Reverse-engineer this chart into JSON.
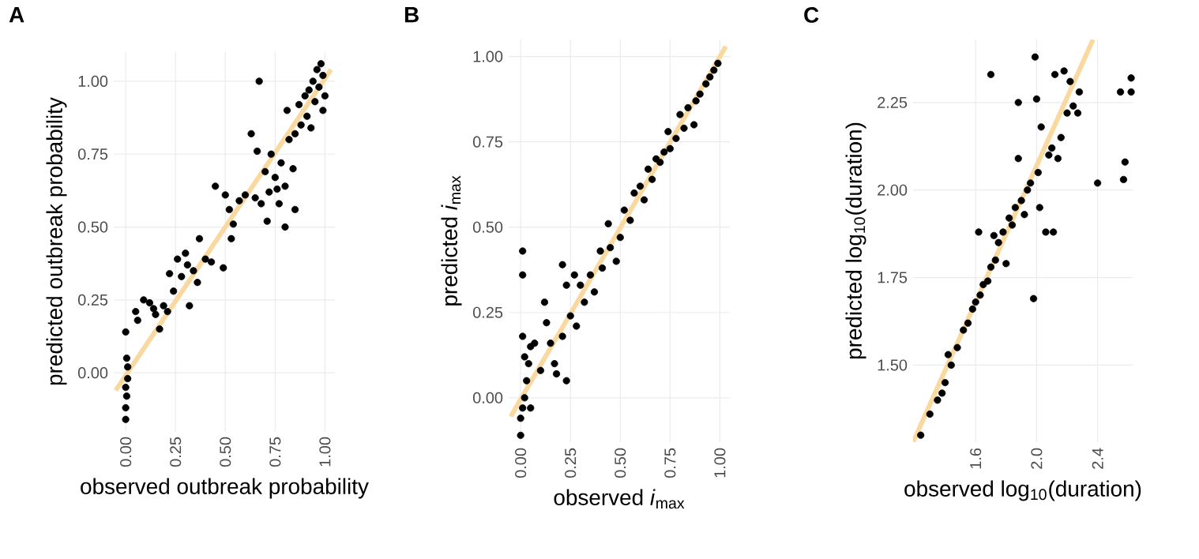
{
  "chart_data": [
    {
      "type": "scatter",
      "title": "A",
      "xlabel": "observed outbreak probability",
      "ylabel": "predicted outbreak probability",
      "grid": true,
      "xlim": [
        -0.06,
        1.05
      ],
      "ylim": [
        -0.2,
        1.1
      ],
      "xticks": [
        {
          "value": 0,
          "label": "0.00"
        },
        {
          "value": 0.25,
          "label": "0.25"
        },
        {
          "value": 0.5,
          "label": "0.50"
        },
        {
          "value": 0.75,
          "label": "0.75"
        },
        {
          "value": 1,
          "label": "1.00"
        }
      ],
      "yticks": [
        {
          "value": 0,
          "label": "0.00"
        },
        {
          "value": 0.25,
          "label": "0.25"
        },
        {
          "value": 0.5,
          "label": "0.50"
        },
        {
          "value": 0.75,
          "label": "0.75"
        },
        {
          "value": 1,
          "label": "1.00"
        }
      ],
      "series": [
        {
          "marker": "circle",
          "color": "#000000",
          "x": [
            0,
            0,
            0.005,
            0,
            0.01,
            0.01,
            0.005,
            0,
            0.05,
            0.06,
            0.09,
            0.12,
            0.14,
            0.15,
            0.17,
            0.19,
            0.21,
            0.22,
            0.24,
            0.26,
            0.28,
            0.3,
            0.31,
            0.32,
            0.34,
            0.36,
            0.37,
            0.4,
            0.43,
            0.45,
            0.49,
            0.5,
            0.52,
            0.53,
            0.54,
            0.57,
            0.6,
            0.63,
            0.65,
            0.66,
            0.67,
            0.68,
            0.7,
            0.71,
            0.72,
            0.73,
            0.75,
            0.76,
            0.77,
            0.78,
            0.8,
            0.8,
            0.81,
            0.82,
            0.84,
            0.85,
            0.85,
            0.87,
            0.88,
            0.9,
            0.91,
            0.92,
            0.93,
            0.94,
            0.95,
            0.96,
            0.97,
            0.98,
            0.99,
            1.0,
            0.99
          ],
          "values": [
            -0.16,
            -0.12,
            -0.08,
            -0.05,
            -0.02,
            0.02,
            0.05,
            0.14,
            0.21,
            0.18,
            0.25,
            0.24,
            0.22,
            0.2,
            0.15,
            0.23,
            0.21,
            0.34,
            0.28,
            0.39,
            0.33,
            0.41,
            0.37,
            0.23,
            0.35,
            0.31,
            0.46,
            0.39,
            0.38,
            0.64,
            0.36,
            0.61,
            0.56,
            0.46,
            0.51,
            0.59,
            0.61,
            0.82,
            0.6,
            0.76,
            1.0,
            0.58,
            0.69,
            0.52,
            0.62,
            0.75,
            0.67,
            0.63,
            0.58,
            0.72,
            0.5,
            0.64,
            0.9,
            0.8,
            0.7,
            0.56,
            0.82,
            0.92,
            0.85,
            0.95,
            0.88,
            0.97,
            0.84,
            1.0,
            0.93,
            1.04,
            0.98,
            1.06,
            1.02,
            0.95,
            0.9
          ]
        },
        {
          "type": "line",
          "marker": "none",
          "color": "#f9d9a0",
          "x": [
            -0.05,
            1.03
          ],
          "values": [
            -0.06,
            1.04
          ]
        }
      ]
    },
    {
      "type": "scatter",
      "title": "B",
      "xlabel": "observed *i*$_{max}$",
      "ylabel": "predicted *i*$_{max}$",
      "grid": true,
      "xlim": [
        -0.06,
        1.05
      ],
      "ylim": [
        -0.13,
        1.05
      ],
      "xticks": [
        {
          "value": 0,
          "label": "0.00"
        },
        {
          "value": 0.25,
          "label": "0.25"
        },
        {
          "value": 0.5,
          "label": "0.50"
        },
        {
          "value": 0.75,
          "label": "0.75"
        },
        {
          "value": 1,
          "label": "1.00"
        }
      ],
      "yticks": [
        {
          "value": 0,
          "label": "0.00"
        },
        {
          "value": 0.25,
          "label": "0.25"
        },
        {
          "value": 0.5,
          "label": "0.50"
        },
        {
          "value": 0.75,
          "label": "0.75"
        },
        {
          "value": 1,
          "label": "1.00"
        }
      ],
      "series": [
        {
          "marker": "circle",
          "color": "#000000",
          "x": [
            0,
            0,
            0.01,
            0.02,
            0.03,
            0.05,
            0.01,
            0.01,
            0.01,
            0.02,
            0.04,
            0.05,
            0.07,
            0.1,
            0.12,
            0.13,
            0.15,
            0.17,
            0.18,
            0.21,
            0.21,
            0.23,
            0.23,
            0.25,
            0.27,
            0.28,
            0.3,
            0.32,
            0.35,
            0.37,
            0.4,
            0.41,
            0.44,
            0.45,
            0.48,
            0.5,
            0.52,
            0.55,
            0.57,
            0.6,
            0.62,
            0.64,
            0.66,
            0.68,
            0.7,
            0.72,
            0.74,
            0.75,
            0.78,
            0.8,
            0.82,
            0.84,
            0.87,
            0.88,
            0.9,
            0.93,
            0.95,
            0.97,
            0.99
          ],
          "values": [
            -0.11,
            -0.06,
            -0.03,
            0.0,
            0.05,
            -0.03,
            0.43,
            0.36,
            0.18,
            0.12,
            0.1,
            0.15,
            0.16,
            0.08,
            0.28,
            0.22,
            0.16,
            0.1,
            0.07,
            0.39,
            0.18,
            0.05,
            0.33,
            0.24,
            0.36,
            0.21,
            0.33,
            0.28,
            0.36,
            0.31,
            0.43,
            0.38,
            0.51,
            0.44,
            0.4,
            0.47,
            0.55,
            0.52,
            0.6,
            0.62,
            0.58,
            0.67,
            0.64,
            0.7,
            0.69,
            0.72,
            0.78,
            0.73,
            0.76,
            0.83,
            0.79,
            0.85,
            0.8,
            0.87,
            0.89,
            0.92,
            0.94,
            0.96,
            0.98
          ]
        },
        {
          "type": "line",
          "marker": "none",
          "color": "#f9d9a0",
          "x": [
            -0.05,
            1.03
          ],
          "values": [
            -0.055,
            1.03
          ]
        }
      ]
    },
    {
      "type": "scatter",
      "title": "C",
      "xlabel": "observed log$_{10}$(duration)",
      "ylabel": "predicted log$_{10}$(duration)",
      "grid": true,
      "xlim": [
        1.19,
        2.63
      ],
      "ylim": [
        1.28,
        2.43
      ],
      "xticks": [
        {
          "value": 1.6,
          "label": "1.6"
        },
        {
          "value": 2.0,
          "label": "2.0"
        },
        {
          "value": 2.4,
          "label": "2.4"
        }
      ],
      "yticks": [
        {
          "value": 1.5,
          "label": "1.50"
        },
        {
          "value": 1.75,
          "label": "1.75"
        },
        {
          "value": 2.0,
          "label": "2.00"
        },
        {
          "value": 2.25,
          "label": "2.25"
        }
      ],
      "series": [
        {
          "marker": "circle",
          "color": "#000000",
          "x": [
            1.24,
            1.3,
            1.35,
            1.4,
            1.38,
            1.44,
            1.42,
            1.48,
            1.52,
            1.55,
            1.58,
            1.6,
            1.63,
            1.65,
            1.68,
            1.62,
            1.7,
            1.73,
            1.72,
            1.75,
            1.78,
            1.8,
            1.82,
            1.84,
            1.86,
            1.88,
            1.88,
            1.9,
            1.92,
            1.94,
            1.96,
            1.98,
            1.99,
            2.0,
            2.01,
            2.02,
            2.03,
            2.06,
            2.08,
            2.1,
            2.11,
            2.12,
            2.14,
            2.16,
            2.18,
            2.2,
            2.22,
            2.24,
            2.27,
            2.28,
            2.4,
            2.55,
            2.57,
            2.58,
            2.62,
            2.62,
            1.7
          ],
          "values": [
            1.3,
            1.36,
            1.4,
            1.45,
            1.42,
            1.5,
            1.53,
            1.55,
            1.6,
            1.62,
            1.66,
            1.68,
            1.7,
            1.73,
            1.74,
            1.88,
            1.78,
            1.8,
            1.87,
            1.85,
            1.88,
            1.79,
            1.92,
            1.9,
            1.95,
            2.09,
            2.25,
            1.97,
            1.93,
            2.0,
            2.02,
            1.69,
            2.38,
            2.26,
            2.05,
            1.95,
            2.18,
            1.88,
            2.1,
            2.12,
            1.88,
            2.33,
            2.09,
            2.15,
            2.34,
            2.22,
            2.31,
            2.24,
            2.22,
            2.28,
            2.02,
            2.28,
            2.03,
            2.08,
            2.28,
            2.32,
            2.33
          ]
        },
        {
          "type": "line",
          "marker": "none",
          "color": "#f9d9a0",
          "x": [
            1.19,
            2.37
          ],
          "values": [
            1.28,
            2.43
          ]
        }
      ]
    }
  ]
}
